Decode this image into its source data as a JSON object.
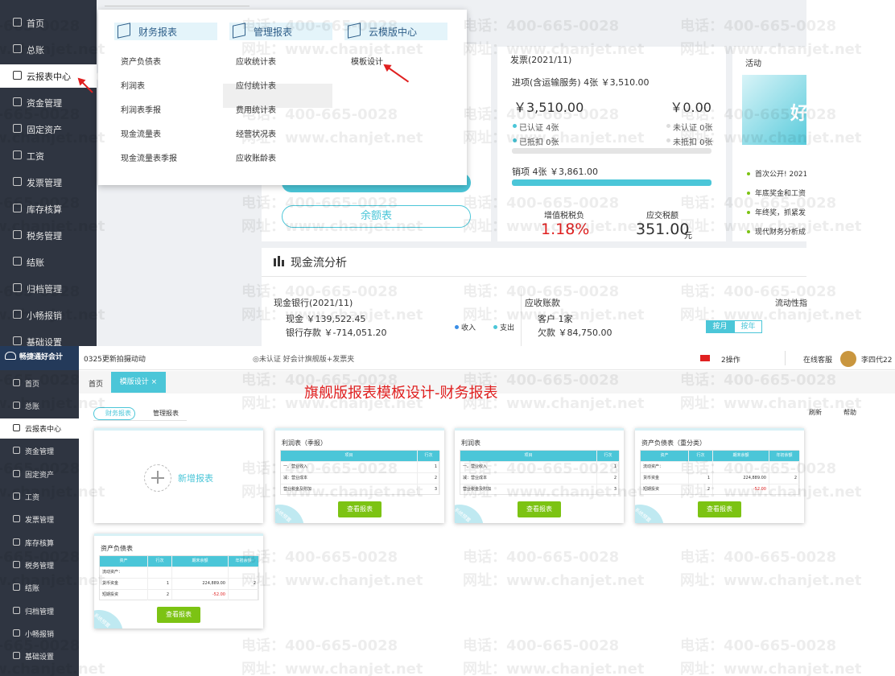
{
  "sidebar": [
    "首页",
    "总账",
    "云报表中心",
    "资金管理",
    "固定资产",
    "工资",
    "发票管理",
    "库存核算",
    "税务管理",
    "结账",
    "归档管理",
    "小畅报销",
    "基础设置"
  ],
  "watermark": {
    "phone": "电话：400-665-0028",
    "site": "网址：www.chanjet.net"
  },
  "top": {
    "menu": [
      {
        "title": "财务报表",
        "items": [
          "资产负债表",
          "利润表",
          "利润表季报",
          "现金流量表",
          "现金流量表季报"
        ]
      },
      {
        "title": "管理报表",
        "items": [
          "应收统计表",
          "应付统计表",
          "费用统计表",
          "经营状况表",
          "应收账龄表"
        ]
      },
      {
        "title": "云模版中心",
        "items": [
          "模板设计"
        ]
      }
    ],
    "balance_button": "余额表",
    "invoice": {
      "title": "发票(2021/11)",
      "input": "进项(含运输服务) 4张 ￥3,510.00",
      "amount_left": "￥3,510.00",
      "amount_right": "￥0.00",
      "certified": "已认证  4张",
      "uncertified": "未认证  0张",
      "deducted": "已抵扣  0张",
      "undeducted": "未抵扣  0张",
      "output": "销项   4张  ￥3,861.00",
      "tax_burden_label": "增值税税负",
      "tax_burden": "1.18%",
      "tax_due_label": "应交税额",
      "tax_due": "351.00",
      "tax_due_unit": "元"
    },
    "activity": {
      "title": "活动",
      "banner": "好",
      "items": [
        "首次公开! 2021",
        "年底奖金和工资",
        "年终奖，抓紧发",
        "现代财务分析成"
      ]
    },
    "cashflow": {
      "title": "现金流分析",
      "bank": "现金银行(2021/11)",
      "cash": "现金  ￥139,522.45",
      "deposit": "银行存款  ￥-714,051.20",
      "income": "收入",
      "expense": "支出",
      "receivable": "应收账款",
      "customers": "客户  1家",
      "owed": "欠款  ￥84,750.00",
      "liquidity": "流动性指",
      "by_month": "按月",
      "by_year": "按年"
    }
  },
  "bottom": {
    "logo": "畅捷通好会计",
    "account": "0325更新拍摄动动",
    "status": "◎未认证  好会计旗舰版+发票夹",
    "notice": "2操作",
    "service": "在线客服",
    "user": "李四代22",
    "tabs": [
      "首页",
      "模版设计 ×"
    ],
    "title": "旗舰版报表模板设计-财务报表",
    "subtabs": [
      "财务报表",
      "管理报表"
    ],
    "refresh": "刷新",
    "help": "帮助",
    "new_report": "新增报表",
    "view_button": "查看报表",
    "tag": "系统预置",
    "cards": [
      {
        "title": "利润表（季报）",
        "header": [
          "项目",
          "行次"
        ],
        "rows": [
          [
            "一、营业收入",
            "1"
          ],
          [
            "减：营业成本",
            "2"
          ],
          [
            "营业税金及附加",
            "3"
          ]
        ]
      },
      {
        "title": "利润表",
        "header": [
          "项目",
          "行次"
        ],
        "rows": [
          [
            "一、营业收入",
            "1"
          ],
          [
            "减：营业成本",
            "2"
          ],
          [
            "营业税金及附加",
            "3"
          ]
        ]
      },
      {
        "title": "资产负债表（重分类）",
        "header": [
          "资产",
          "行次",
          "期末余额",
          "年初余额"
        ],
        "rows": [
          [
            "流动资产：",
            "",
            "",
            ""
          ],
          [
            "货币资金",
            "1",
            "224,889.00",
            "2"
          ],
          [
            "短期投资",
            "2",
            "-52.00",
            ""
          ]
        ]
      },
      {
        "title": "资产负债表",
        "header": [
          "资产",
          "行次",
          "期末余额",
          "年初余额"
        ],
        "rows": [
          [
            "流动资产：",
            "",
            "",
            ""
          ],
          [
            "货币资金",
            "1",
            "224,889.00",
            "2"
          ],
          [
            "短期投资",
            "2",
            "-52.00",
            ""
          ]
        ]
      }
    ]
  }
}
